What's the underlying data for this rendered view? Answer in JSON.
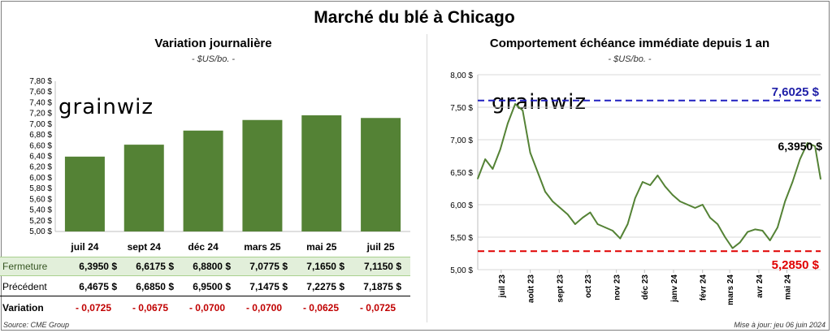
{
  "title": "Marché du blé à Chicago",
  "left": {
    "subtitle": "Variation journalière",
    "unit": "- $US/bo. -",
    "watermark": "grainwiz",
    "table": {
      "rows": [
        {
          "label": "Fermeture",
          "values": [
            "6,3950  $",
            "6,6175  $",
            "6,8800  $",
            "7,0775  $",
            "7,1650  $",
            "7,1150  $"
          ]
        },
        {
          "label": "Précédent",
          "values": [
            "6,4675  $",
            "6,6850  $",
            "6,9500  $",
            "7,1475  $",
            "7,2275  $",
            "7,1875  $"
          ]
        },
        {
          "label": "Variation",
          "values": [
            "- 0,0725",
            "- 0,0675",
            "- 0,0700",
            "- 0,0700",
            "- 0,0625",
            "- 0,0725"
          ]
        }
      ]
    }
  },
  "right": {
    "subtitle": "Comportement  échéance immédiate depuis 1 an",
    "unit": "- $US/bo. -",
    "watermark": "grainwiz",
    "high_label": "7,6025 $",
    "low_label": "5,2850 $",
    "last_label": "6,3950 $"
  },
  "footer": {
    "source": "Source: CME Group",
    "updated": "Mise à jour: jeu 06 juin 2024"
  },
  "chart_data": [
    {
      "type": "bar",
      "title": "Variation journalière",
      "ylabel": "$US/bo.",
      "categories": [
        "juil 24",
        "sept 24",
        "déc 24",
        "mars 25",
        "mai 25",
        "juil 25"
      ],
      "values": [
        6.395,
        6.6175,
        6.88,
        7.0775,
        7.165,
        7.115
      ],
      "ylim": [
        5.0,
        7.8
      ],
      "yticks": [
        "5,00 $",
        "5,20 $",
        "5,40 $",
        "5,60 $",
        "5,80 $",
        "6,00 $",
        "6,20 $",
        "6,40 $",
        "6,60 $",
        "6,80 $",
        "7,00 $",
        "7,20 $",
        "7,40 $",
        "7,60 $",
        "7,80 $"
      ],
      "color": "#548235",
      "grid": false
    },
    {
      "type": "line",
      "title": "Comportement  échéance immédiate depuis 1 an",
      "ylabel": "$US/bo.",
      "ylim": [
        5.0,
        8.0
      ],
      "yticks": [
        "5,00 $",
        "5,50 $",
        "6,00 $",
        "6,50 $",
        "7,00 $",
        "7,50 $",
        "8,00 $"
      ],
      "xticks": [
        "juil 23",
        "août 23",
        "sept 23",
        "oct 23",
        "nov 23",
        "déc 23",
        "janv 24",
        "févr 24",
        "mars 24",
        "avr 24",
        "mai 24"
      ],
      "series": [
        {
          "color": "#548235",
          "x": [
            "2023-06-06",
            "2023-06-14",
            "2023-06-22",
            "2023-06-30",
            "2023-07-08",
            "2023-07-16",
            "2023-07-24",
            "2023-08-01",
            "2023-08-09",
            "2023-08-17",
            "2023-08-25",
            "2023-09-02",
            "2023-09-10",
            "2023-09-18",
            "2023-09-26",
            "2023-10-04",
            "2023-10-12",
            "2023-10-20",
            "2023-10-28",
            "2023-11-05",
            "2023-11-13",
            "2023-11-21",
            "2023-11-29",
            "2023-12-07",
            "2023-12-15",
            "2023-12-23",
            "2023-12-31",
            "2024-01-08",
            "2024-01-16",
            "2024-01-24",
            "2024-02-01",
            "2024-02-09",
            "2024-02-17",
            "2024-02-25",
            "2024-03-04",
            "2024-03-12",
            "2024-03-20",
            "2024-03-28",
            "2024-04-05",
            "2024-04-13",
            "2024-04-21",
            "2024-04-29",
            "2024-05-07",
            "2024-05-15",
            "2024-05-23",
            "2024-05-31",
            "2024-06-06"
          ],
          "y": [
            6.4,
            6.7,
            6.55,
            6.85,
            7.25,
            7.55,
            7.45,
            6.8,
            6.5,
            6.2,
            6.05,
            5.95,
            5.85,
            5.7,
            5.8,
            5.88,
            5.7,
            5.65,
            5.6,
            5.48,
            5.7,
            6.1,
            6.35,
            6.3,
            6.45,
            6.28,
            6.15,
            6.05,
            6.0,
            5.95,
            6.0,
            5.8,
            5.7,
            5.5,
            5.33,
            5.42,
            5.58,
            5.62,
            5.6,
            5.45,
            5.65,
            6.05,
            6.35,
            6.7,
            6.95,
            6.9,
            6.395
          ]
        }
      ],
      "reference_lines": [
        {
          "y": 7.6025,
          "color": "#2020c0",
          "style": "dashed",
          "label": "7,6025 $"
        },
        {
          "y": 5.285,
          "color": "#e00000",
          "style": "dashed",
          "label": "5,2850 $"
        }
      ],
      "grid": "horizontal"
    }
  ]
}
